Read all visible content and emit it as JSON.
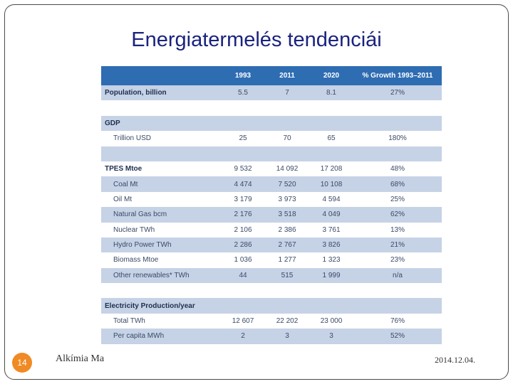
{
  "slide": {
    "title": "Energiatermelés tendenciái",
    "page_number": "14",
    "footer_left": "Alkímia Ma",
    "footer_date": "2014.12.04."
  },
  "table": {
    "headers": [
      "",
      "1993",
      "2011",
      "2020",
      "% Growth 1993–2011"
    ],
    "rows": [
      {
        "label": "Population, billion",
        "type": "section",
        "values": [
          "5.5",
          "7",
          "8.1",
          "27%"
        ]
      },
      {
        "label": "",
        "type": "blank",
        "values": [
          "",
          "",
          "",
          ""
        ]
      },
      {
        "label": "GDP",
        "type": "section",
        "values": [
          "",
          "",
          "",
          ""
        ]
      },
      {
        "label": "Trillion USD",
        "type": "sub",
        "values": [
          "25",
          "70",
          "65",
          "180%"
        ]
      },
      {
        "label": "",
        "type": "blank",
        "values": [
          "",
          "",
          "",
          ""
        ]
      },
      {
        "label": "TPES Mtoe",
        "type": "section",
        "values": [
          "9 532",
          "14 092",
          "17 208",
          "48%"
        ]
      },
      {
        "label": "Coal Mt",
        "type": "sub",
        "values": [
          "4 474",
          "7 520",
          "10 108",
          "68%"
        ]
      },
      {
        "label": "Oil Mt",
        "type": "sub",
        "values": [
          "3 179",
          "3 973",
          "4 594",
          "25%"
        ]
      },
      {
        "label": "Natural Gas bcm",
        "type": "sub",
        "values": [
          "2 176",
          "3 518",
          "4 049",
          "62%"
        ]
      },
      {
        "label": "Nuclear TWh",
        "type": "sub",
        "values": [
          "2 106",
          "2 386",
          "3 761",
          "13%"
        ]
      },
      {
        "label": "Hydro Power TWh",
        "type": "sub",
        "values": [
          "2 286",
          "2 767",
          "3 826",
          "21%"
        ]
      },
      {
        "label": "Biomass Mtoe",
        "type": "sub",
        "values": [
          "1 036",
          "1 277",
          "1 323",
          "23%"
        ]
      },
      {
        "label": "Other renewables* TWh",
        "type": "sub",
        "values": [
          "44",
          "515",
          "1 999",
          "n/a"
        ]
      },
      {
        "label": "",
        "type": "blank",
        "values": [
          "",
          "",
          "",
          ""
        ]
      },
      {
        "label": "Electricity Production/year",
        "type": "section",
        "values": [
          "",
          "",
          "",
          ""
        ]
      },
      {
        "label": "Total TWh",
        "type": "sub",
        "values": [
          "12 607",
          "22 202",
          "23 000",
          "76%"
        ]
      },
      {
        "label": "Per capita MWh",
        "type": "sub",
        "values": [
          "2",
          "3",
          "3",
          "52%"
        ]
      }
    ]
  }
}
